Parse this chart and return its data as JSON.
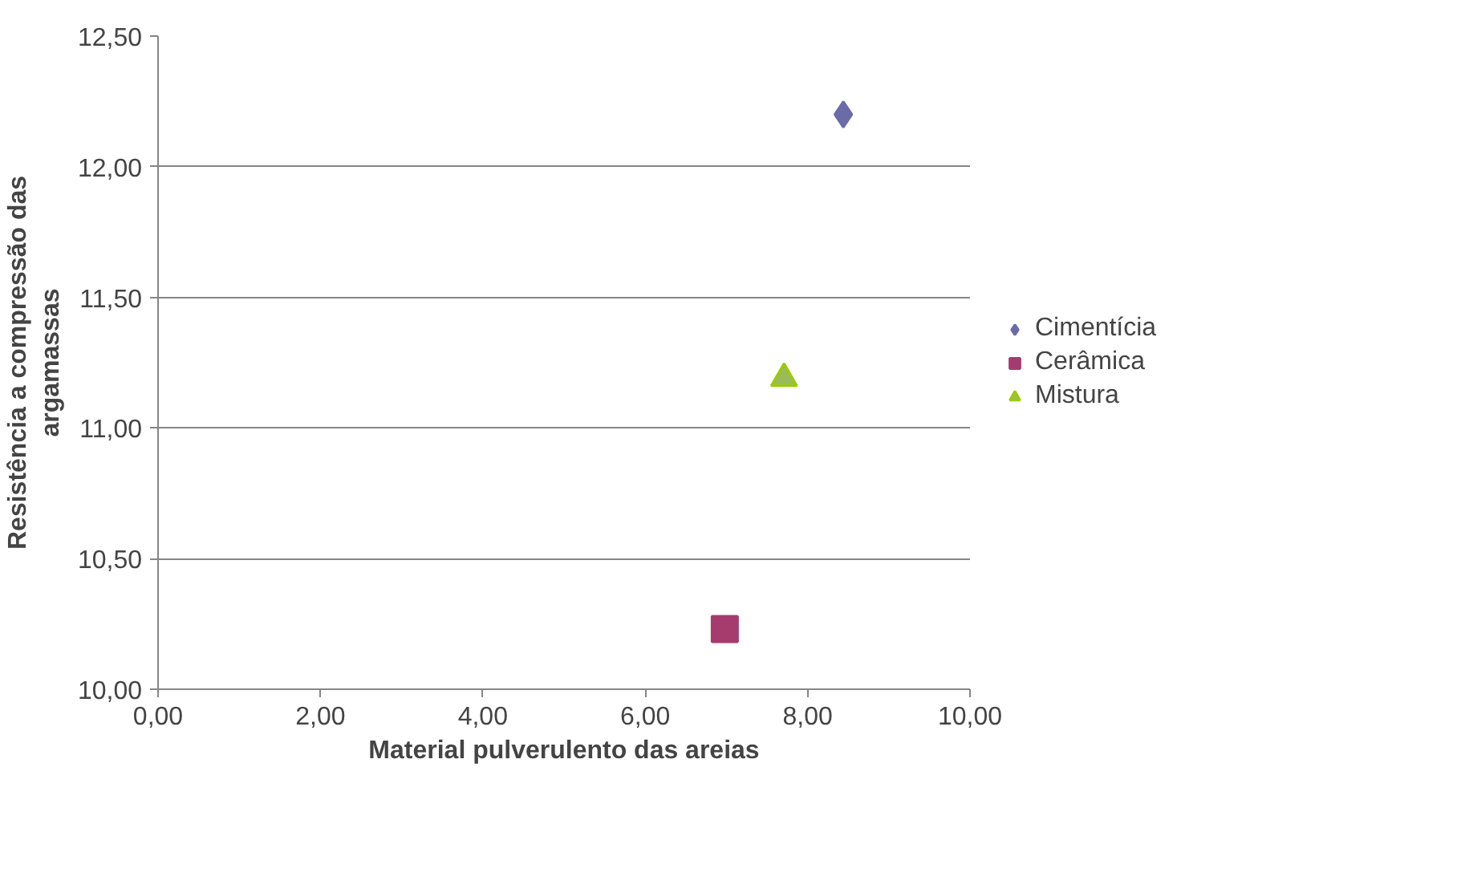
{
  "chart_data": {
    "type": "scatter",
    "xlabel": "Material pulverulento das areias",
    "ylabel": "Resistência a compressão das argamassas",
    "xlim": [
      0,
      10
    ],
    "ylim": [
      10,
      12.5
    ],
    "xticks": [
      {
        "value": 0,
        "label": "0,00"
      },
      {
        "value": 2,
        "label": "2,00"
      },
      {
        "value": 4,
        "label": "4,00"
      },
      {
        "value": 6,
        "label": "6,00"
      },
      {
        "value": 8,
        "label": "8,00"
      },
      {
        "value": 10,
        "label": "10,00"
      }
    ],
    "yticks": [
      {
        "value": 10,
        "label": "10,00"
      },
      {
        "value": 10.5,
        "label": "10,50"
      },
      {
        "value": 11,
        "label": "11,00"
      },
      {
        "value": 11.5,
        "label": "11,50"
      },
      {
        "value": 12,
        "label": "12,00"
      },
      {
        "value": 12.5,
        "label": "12,50"
      }
    ],
    "grid": "y",
    "legend": "right",
    "series": [
      {
        "name": "Cimentícia",
        "color": "#6b6ba8",
        "marker": "diamond",
        "x": [
          8.44
        ],
        "values": [
          12.2
        ]
      },
      {
        "name": "Cerâmica",
        "color": "#a63c6e",
        "marker": "square",
        "x": [
          6.98
        ],
        "values": [
          10.23
        ]
      },
      {
        "name": "Mistura",
        "color": "#9bbb59",
        "marker": "triangle",
        "x": [
          7.71
        ],
        "values": [
          11.19
        ]
      }
    ]
  }
}
